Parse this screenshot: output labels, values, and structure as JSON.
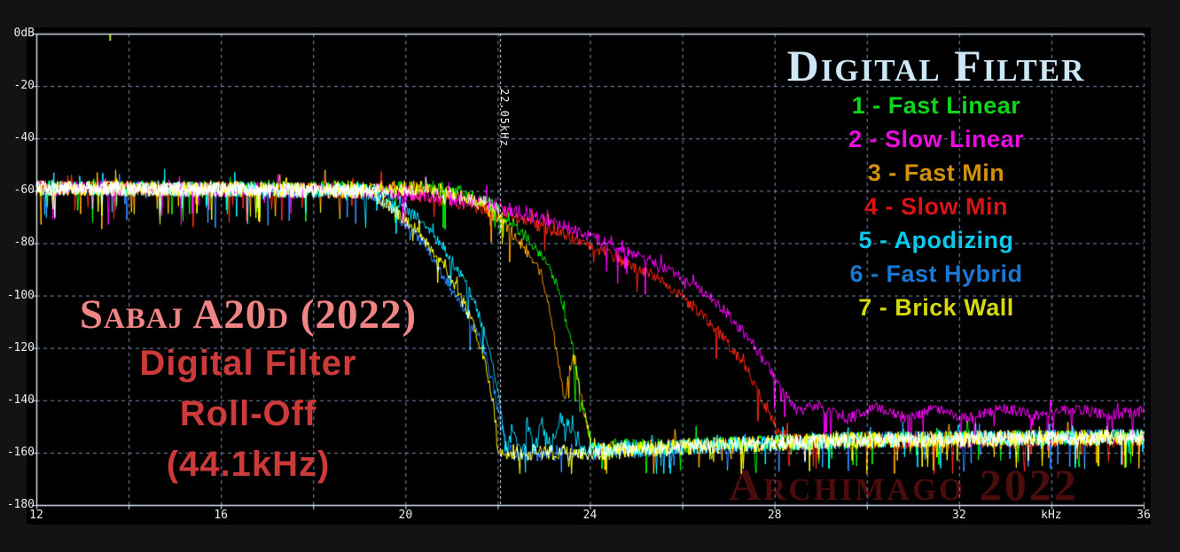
{
  "titles": {
    "device": "Sabaj A20d (2022)",
    "line2": "Digital Filter",
    "line3": "Roll-Off",
    "line4": "(44.1kHz)"
  },
  "legend": {
    "title": "Digital Filter",
    "items": [
      {
        "label": "1 - Fast Linear",
        "color": "#0ed41c"
      },
      {
        "label": "2 - Slow Linear",
        "color": "#ea0ce0"
      },
      {
        "label": "3 - Fast Min",
        "color": "#d4920c"
      },
      {
        "label": "4 - Slow Min",
        "color": "#da1414"
      },
      {
        "label": "5 - Apodizing",
        "color": "#0cc8ea"
      },
      {
        "label": "6 - Fast Hybrid",
        "color": "#1a78d2"
      },
      {
        "label": "7 - Brick Wall",
        "color": "#d8d80e"
      }
    ]
  },
  "watermark": "Archimago 2022",
  "marker": {
    "label": "22.05kHz",
    "freq_khz": 22.05
  },
  "colors": {
    "outer_background": "#131313",
    "plot_background": "#000000",
    "grid": "#7e90b8",
    "axis": "#dce8f2",
    "marker_line": "#dfe8ee",
    "tick_text": "#ededed"
  },
  "artifact_tick": {
    "freq_khz": 13.6,
    "color": "#b4e03c"
  },
  "chart_data": {
    "type": "line",
    "title": "Sabaj A20d (2022) Digital Filter Roll-Off (44.1kHz)",
    "xlabel": "kHz",
    "ylabel": "dB",
    "xlim": [
      12,
      36
    ],
    "ylim": [
      -180,
      0
    ],
    "grid": true,
    "legend_position": "top-right",
    "x_gridlines_khz": [
      14,
      16,
      18,
      20,
      22,
      24,
      26,
      28,
      30,
      32,
      34,
      36
    ],
    "y_gridlines_db": [
      -20,
      -40,
      -60,
      -80,
      -100,
      -120,
      -140,
      -160
    ],
    "x_tick_labels": [
      {
        "v": 12,
        "t": "12"
      },
      {
        "v": 16,
        "t": "16"
      },
      {
        "v": 20,
        "t": "20"
      },
      {
        "v": 24,
        "t": "24"
      },
      {
        "v": 28,
        "t": "28"
      },
      {
        "v": 32,
        "t": "32"
      },
      {
        "v": 34,
        "t": "kHz"
      },
      {
        "v": 36,
        "t": "36"
      }
    ],
    "y_tick_labels": [
      {
        "v": 0,
        "t": "0dB"
      },
      {
        "v": -20,
        "t": "-20"
      },
      {
        "v": -40,
        "t": "-40"
      },
      {
        "v": -60,
        "t": "-60"
      },
      {
        "v": -80,
        "t": "-80"
      },
      {
        "v": -100,
        "t": "-100"
      },
      {
        "v": -120,
        "t": "-120"
      },
      {
        "v": -140,
        "t": "-140"
      },
      {
        "v": -160,
        "t": "-160"
      },
      {
        "v": -180,
        "t": "-180"
      }
    ],
    "marker_freq_khz": 22.05,
    "passband_level_db": -59,
    "noise_floor_db": -157,
    "noise_amp_db": 3,
    "series": [
      {
        "name": "Brick Wall",
        "color": "#f0f000",
        "points": [
          [
            12,
            -59
          ],
          [
            19.2,
            -60
          ],
          [
            19.7,
            -66
          ],
          [
            20.2,
            -74
          ],
          [
            20.7,
            -85
          ],
          [
            21.1,
            -97
          ],
          [
            21.45,
            -110
          ],
          [
            21.7,
            -124
          ],
          [
            21.9,
            -140
          ],
          [
            22.0,
            -157
          ],
          [
            22.1,
            -164
          ],
          [
            22.3,
            -160
          ],
          [
            24,
            -160
          ],
          [
            27,
            -157
          ],
          [
            30,
            -155
          ],
          [
            36,
            -154
          ]
        ]
      },
      {
        "name": "Fast Hybrid",
        "color": "#2878f0",
        "points": [
          [
            12,
            -59
          ],
          [
            19.0,
            -60
          ],
          [
            19.5,
            -64
          ],
          [
            20.0,
            -73
          ],
          [
            20.4,
            -80
          ],
          [
            20.9,
            -95
          ],
          [
            21.3,
            -106
          ],
          [
            21.65,
            -118
          ],
          [
            21.9,
            -134
          ],
          [
            22.05,
            -148
          ],
          [
            22.25,
            -160
          ],
          [
            24,
            -160
          ],
          [
            27,
            -157
          ],
          [
            30,
            -155
          ],
          [
            36,
            -154
          ]
        ]
      },
      {
        "name": "Apodizing",
        "color": "#00c8f0",
        "points": [
          [
            12,
            -59
          ],
          [
            19.3,
            -60
          ],
          [
            19.8,
            -64
          ],
          [
            20.3,
            -71
          ],
          [
            20.8,
            -81
          ],
          [
            21.2,
            -92
          ],
          [
            21.5,
            -103
          ],
          [
            21.75,
            -116
          ],
          [
            21.95,
            -131
          ],
          [
            22.1,
            -148
          ],
          [
            22.2,
            -158
          ],
          [
            22.35,
            -149
          ],
          [
            22.5,
            -160
          ],
          [
            22.65,
            -148
          ],
          [
            22.8,
            -160
          ],
          [
            22.95,
            -148
          ],
          [
            23.15,
            -158
          ],
          [
            23.35,
            -146
          ],
          [
            23.6,
            -152
          ],
          [
            23.8,
            -159
          ],
          [
            27,
            -157
          ],
          [
            30,
            -155
          ],
          [
            36,
            -154
          ]
        ]
      },
      {
        "name": "Slow Min",
        "color": "#f02010",
        "points": [
          [
            12,
            -59
          ],
          [
            19.5,
            -60
          ],
          [
            20.5,
            -62
          ],
          [
            21.5,
            -65.5
          ],
          [
            22.5,
            -71
          ],
          [
            23.5,
            -77
          ],
          [
            24.5,
            -85
          ],
          [
            25.5,
            -94
          ],
          [
            26.3,
            -105
          ],
          [
            26.9,
            -116
          ],
          [
            27.4,
            -128
          ],
          [
            27.8,
            -142
          ],
          [
            28.1,
            -152
          ],
          [
            28.4,
            -156
          ],
          [
            36,
            -155
          ]
        ]
      },
      {
        "name": "Fast Min",
        "color": "#f09000",
        "points": [
          [
            12,
            -59
          ],
          [
            20.4,
            -59
          ],
          [
            21.0,
            -61
          ],
          [
            21.6,
            -65
          ],
          [
            22.1,
            -72
          ],
          [
            22.6,
            -82
          ],
          [
            22.95,
            -92
          ],
          [
            23.15,
            -108
          ],
          [
            23.35,
            -130
          ],
          [
            23.45,
            -140
          ],
          [
            23.55,
            -128
          ],
          [
            23.65,
            -124
          ],
          [
            23.8,
            -138
          ],
          [
            24.0,
            -154
          ],
          [
            24.2,
            -159
          ],
          [
            27,
            -157
          ],
          [
            30,
            -155
          ],
          [
            36,
            -154
          ]
        ]
      },
      {
        "name": "Slow Linear",
        "color": "#f000f0",
        "points": [
          [
            12,
            -59
          ],
          [
            19.5,
            -60
          ],
          [
            20.5,
            -61.5
          ],
          [
            21.5,
            -64
          ],
          [
            22.5,
            -68
          ],
          [
            23.5,
            -74
          ],
          [
            24.5,
            -81
          ],
          [
            25.5,
            -88
          ],
          [
            26.3,
            -96
          ],
          [
            27.0,
            -107
          ],
          [
            27.6,
            -120
          ],
          [
            28.1,
            -134
          ],
          [
            28.5,
            -144
          ],
          [
            29.0,
            -142
          ],
          [
            29.6,
            -147
          ],
          [
            30.2,
            -143
          ],
          [
            30.9,
            -147
          ],
          [
            31.5,
            -143
          ],
          [
            32.2,
            -147
          ],
          [
            33.0,
            -143
          ],
          [
            33.8,
            -146
          ],
          [
            34.5,
            -143
          ],
          [
            35.2,
            -146
          ],
          [
            36,
            -144
          ]
        ]
      },
      {
        "name": "Fast Linear",
        "color": "#00e000",
        "points": [
          [
            12,
            -59
          ],
          [
            20.6,
            -59
          ],
          [
            21.2,
            -61
          ],
          [
            21.8,
            -65
          ],
          [
            22.3,
            -72
          ],
          [
            22.8,
            -81
          ],
          [
            23.1,
            -88
          ],
          [
            23.35,
            -100
          ],
          [
            23.6,
            -118
          ],
          [
            23.85,
            -142
          ],
          [
            24.05,
            -158
          ],
          [
            27,
            -157
          ],
          [
            30,
            -155
          ],
          [
            36,
            -154
          ]
        ]
      }
    ]
  }
}
